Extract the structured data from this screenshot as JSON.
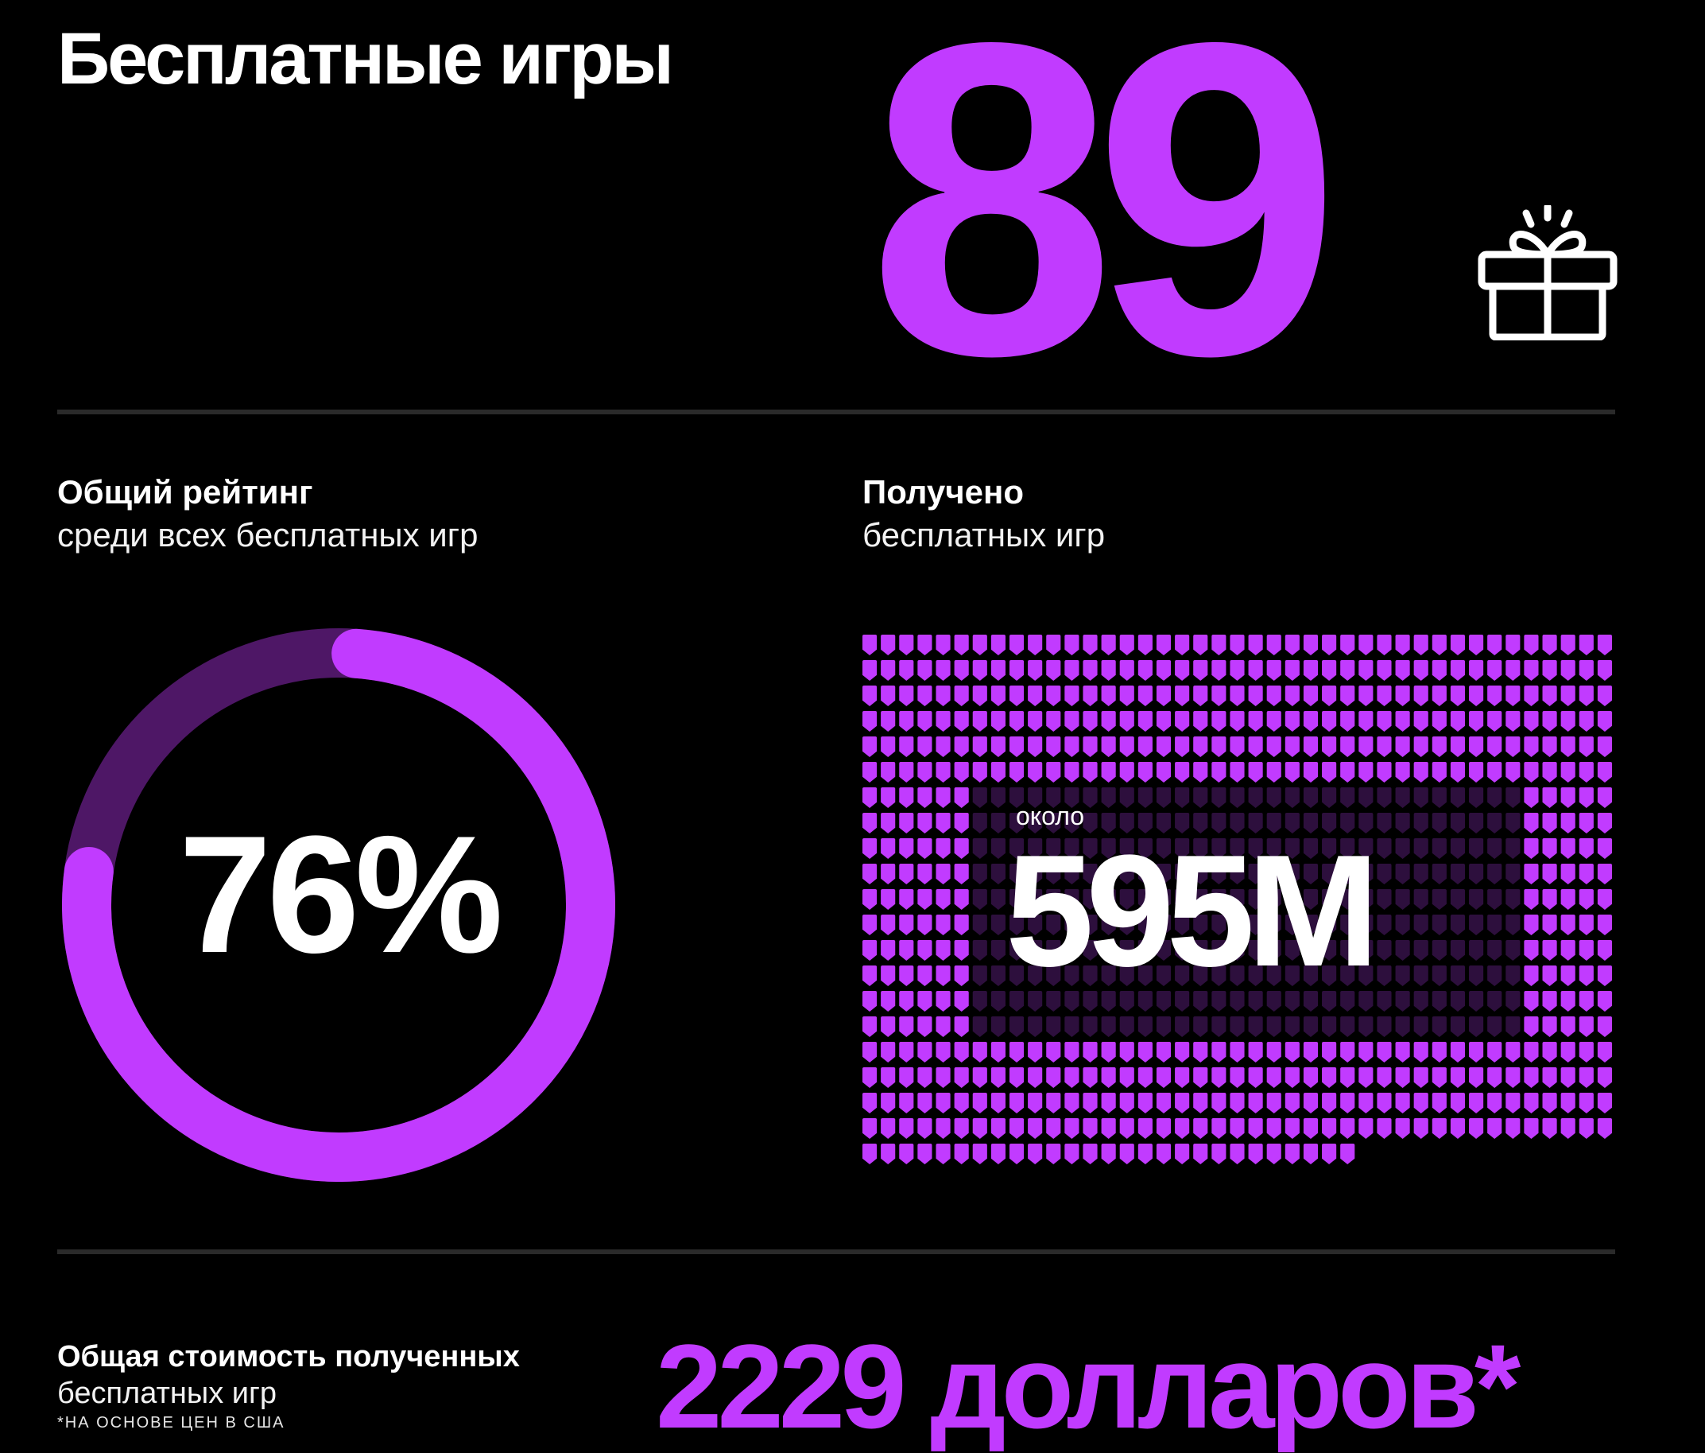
{
  "colors": {
    "background": "#000000",
    "accent": "#c13bff",
    "accent_dim": "#4e1766",
    "tile_dim": "#2d0f3d",
    "text": "#ffffff",
    "divider": "#2a2a2a"
  },
  "header": {
    "title": "Бесплатные игры",
    "count": "89",
    "icon": "gift-icon"
  },
  "rating": {
    "title": "Общий рейтинг",
    "subtitle": "среди всех бесплатных игр",
    "value_text": "76%",
    "fraction": 0.76
  },
  "received": {
    "title": "Получено",
    "subtitle": "бесплатных игр",
    "prefix": "около",
    "value_text": "595M",
    "grid": {
      "columns": 41,
      "rows": 21,
      "last_row_filled": 27,
      "highlight_cols": [
        6,
        35
      ],
      "highlight_rows": [
        6,
        15
      ]
    }
  },
  "total_value": {
    "title": "Общая стоимость полученных",
    "subtitle": "бесплатных игр",
    "footnote": "*НА ОСНОВЕ ЦЕН В США",
    "value_text": "2229 долларов*"
  }
}
